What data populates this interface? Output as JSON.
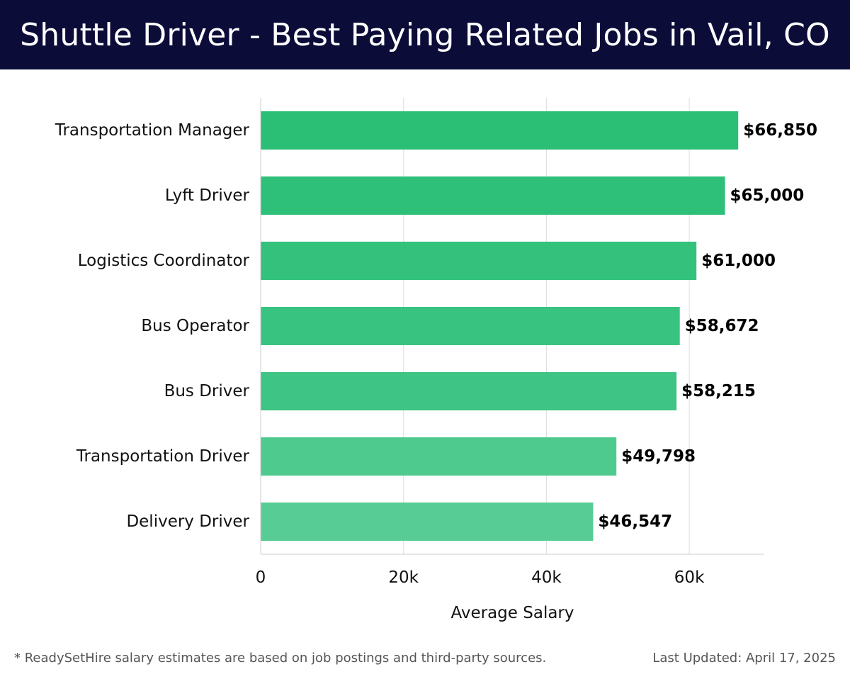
{
  "header": {
    "title": "Shuttle Driver - Best Paying Related Jobs in Vail, CO"
  },
  "chart_data": {
    "type": "bar",
    "orientation": "horizontal",
    "categories": [
      "Transportation Manager",
      "Lyft Driver",
      "Logistics Coordinator",
      "Bus Operator",
      "Bus Driver",
      "Transportation Driver",
      "Delivery Driver"
    ],
    "values": [
      66850,
      65000,
      61000,
      58672,
      58215,
      49798,
      46547
    ],
    "value_labels": [
      "$66,850",
      "$65,000",
      "$61,000",
      "$58,672",
      "$58,215",
      "$49,798",
      "$46,547"
    ],
    "xlabel": "Average Salary",
    "ylabel": "",
    "xlim": [
      0,
      70500
    ],
    "x_ticks": [
      0,
      20000,
      40000,
      60000
    ],
    "x_tick_labels": [
      "0",
      "20k",
      "40k",
      "60k"
    ],
    "grid": "vertical",
    "colors": [
      "#2bbf76",
      "#2ec079",
      "#33c17c",
      "#39c380",
      "#3ec484",
      "#4fca8f",
      "#57cd95"
    ]
  },
  "footer": {
    "note": "* ReadySetHire salary estimates are based on job postings and third-party sources.",
    "last_updated": "Last Updated: April 17, 2025"
  }
}
